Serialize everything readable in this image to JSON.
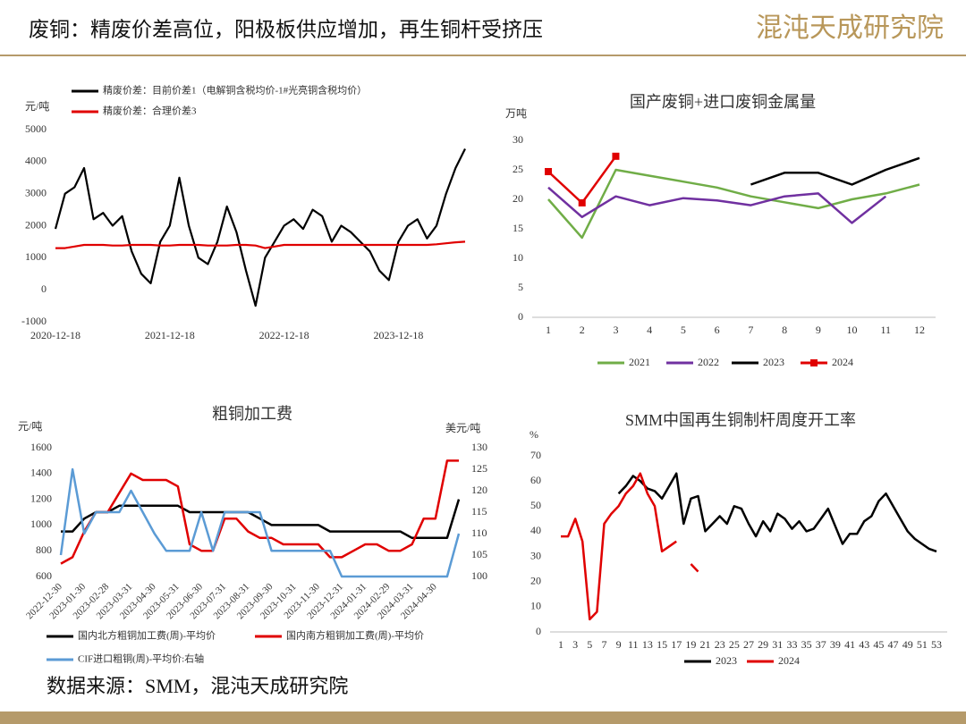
{
  "header": {
    "title": "废铜：精废价差高位，阳极板供应增加，再生铜杆受挤压",
    "logo": "混沌天成研究院"
  },
  "source": "数据来源：SMM，混沌天成研究院",
  "chart_data": [
    {
      "type": "line",
      "y_label": "元/吨",
      "categories": [
        "2020-12-18",
        null,
        null,
        null,
        null,
        null,
        null,
        null,
        null,
        null,
        null,
        null,
        "2021-12-18",
        null,
        null,
        null,
        null,
        null,
        null,
        null,
        null,
        null,
        null,
        null,
        "2022-12-18",
        null,
        null,
        null,
        null,
        null,
        null,
        null,
        null,
        null,
        null,
        null,
        "2023-12-18",
        null,
        null,
        null,
        null,
        null,
        null,
        null
      ],
      "series": [
        {
          "name": "精废价差：目前价差1（电解铜含税均价-1#光亮铜含税均价）",
          "color": "#000000",
          "values": [
            1900,
            3000,
            3200,
            3800,
            2200,
            2400,
            2000,
            2300,
            1200,
            500,
            200,
            1500,
            2000,
            3500,
            2000,
            1000,
            800,
            1500,
            2600,
            1800,
            600,
            -500,
            1000,
            1500,
            2000,
            2200,
            1900,
            2500,
            2300,
            1500,
            2000,
            1800,
            1500,
            1200,
            600,
            300,
            1500,
            2000,
            2200,
            1600,
            2000,
            3000,
            3800,
            4400
          ]
        },
        {
          "name": "精废价差：合理价差3",
          "color": "#e00000",
          "values": [
            1300,
            1300,
            1350,
            1400,
            1400,
            1400,
            1380,
            1380,
            1400,
            1400,
            1400,
            1380,
            1380,
            1400,
            1400,
            1400,
            1380,
            1380,
            1380,
            1400,
            1400,
            1380,
            1300,
            1350,
            1400,
            1400,
            1400,
            1400,
            1400,
            1400,
            1400,
            1400,
            1400,
            1400,
            1400,
            1400,
            1400,
            1400,
            1400,
            1400,
            1420,
            1450,
            1480,
            1500
          ]
        }
      ],
      "ylim": [
        -1000,
        5000
      ],
      "yticks": [
        -1000,
        0,
        1000,
        2000,
        3000,
        4000,
        5000
      ],
      "grid": false
    },
    {
      "type": "line",
      "title": "国产废铜+进口废铜金属量",
      "y_label": "万吨",
      "categories": [
        1,
        2,
        3,
        4,
        5,
        6,
        7,
        8,
        9,
        10,
        11,
        12
      ],
      "series": [
        {
          "name": "2021",
          "color": "#70ad47",
          "values": [
            20,
            13.5,
            25,
            24,
            23,
            22,
            20.5,
            19.5,
            18.5,
            20,
            21,
            22.5
          ]
        },
        {
          "name": "2022",
          "color": "#7030a0",
          "values": [
            22,
            17,
            20.5,
            19,
            20.2,
            19.8,
            19,
            20.5,
            21,
            16,
            20.5,
            null
          ]
        },
        {
          "name": "2023",
          "color": "#000000",
          "values": [
            null,
            null,
            null,
            null,
            null,
            null,
            22.5,
            24.5,
            24.5,
            22.5,
            25,
            27
          ]
        },
        {
          "name": "2024",
          "color": "#e00000",
          "marker": "square",
          "values": [
            24.7,
            19.4,
            27.3,
            null,
            null,
            null,
            null,
            null,
            null,
            null,
            null,
            null
          ]
        }
      ],
      "ylim": [
        0,
        30
      ],
      "yticks": [
        0,
        5,
        10,
        15,
        20,
        25,
        30
      ],
      "grid": false
    },
    {
      "type": "line",
      "title": "粗铜加工费",
      "y_label": "元/吨",
      "y2_label": "美元/吨",
      "categories": [
        "2022-12-30",
        null,
        "2023-01-30",
        null,
        "2023-02-28",
        null,
        "2023-03-31",
        null,
        "2023-04-30",
        null,
        "2023-05-31",
        null,
        "2023-06-30",
        null,
        "2023-07-31",
        null,
        "2023-08-31",
        null,
        "2023-09-30",
        null,
        "2023-10-31",
        null,
        "2023-11-30",
        null,
        "2023-12-31",
        null,
        "2024-01-31",
        null,
        "2024-02-29",
        null,
        "2024-03-31",
        null,
        "2024-04-30",
        null,
        null
      ],
      "series": [
        {
          "name": "国内北方粗铜加工费(周)-平均价",
          "color": "#000000",
          "values": [
            950,
            950,
            1050,
            1100,
            1100,
            1150,
            1150,
            1150,
            1150,
            1150,
            1150,
            1100,
            1100,
            1100,
            1100,
            1100,
            1100,
            1050,
            1000,
            1000,
            1000,
            1000,
            1000,
            950,
            950,
            950,
            950,
            950,
            950,
            950,
            900,
            900,
            900,
            900,
            1200
          ]
        },
        {
          "name": "国内南方粗铜加工费(周)-平均价",
          "color": "#e00000",
          "values": [
            700,
            750,
            950,
            1100,
            1100,
            1250,
            1400,
            1350,
            1350,
            1350,
            1300,
            850,
            800,
            800,
            1050,
            1050,
            950,
            900,
            900,
            850,
            850,
            850,
            850,
            750,
            750,
            800,
            850,
            850,
            800,
            800,
            850,
            1050,
            1050,
            1500,
            1500
          ]
        },
        {
          "name": "CIF进口粗铜(周)-平均价:右轴",
          "color": "#5b9bd5",
          "axis": "y2",
          "values": [
            105,
            125,
            110,
            115,
            115,
            115,
            120,
            115,
            110,
            106,
            106,
            106,
            115,
            106,
            115,
            115,
            115,
            115,
            106,
            106,
            106,
            106,
            106,
            106,
            100,
            100,
            100,
            100,
            100,
            100,
            100,
            100,
            100,
            100,
            110
          ]
        }
      ],
      "ylim": [
        600,
        1600
      ],
      "yticks": [
        600,
        800,
        1000,
        1200,
        1400,
        1600
      ],
      "y2lim": [
        100,
        130
      ],
      "y2ticks": [
        100,
        105,
        110,
        115,
        120,
        125,
        130
      ],
      "grid": false
    },
    {
      "type": "line",
      "title": "SMM中国再生铜制杆周度开工率",
      "y_label": "%",
      "categories": [
        1,
        null,
        3,
        null,
        5,
        null,
        7,
        null,
        9,
        null,
        11,
        null,
        13,
        null,
        15,
        null,
        17,
        null,
        19,
        null,
        21,
        null,
        23,
        null,
        25,
        null,
        27,
        null,
        29,
        null,
        31,
        null,
        33,
        null,
        35,
        null,
        37,
        null,
        39,
        null,
        41,
        null,
        43,
        null,
        45,
        null,
        47,
        null,
        49,
        null,
        51,
        null,
        53
      ],
      "series": [
        {
          "name": "2023",
          "color": "#000000",
          "values": [
            null,
            null,
            null,
            null,
            null,
            null,
            null,
            null,
            55,
            58,
            62,
            60,
            57,
            56,
            53,
            58,
            63,
            43,
            53,
            54,
            40,
            43,
            46,
            43,
            50,
            49,
            43,
            38,
            44,
            40,
            47,
            45,
            41,
            44,
            40,
            41,
            45,
            49,
            42,
            35,
            39,
            39,
            44,
            46,
            52,
            55,
            50,
            45,
            40,
            37,
            35,
            33,
            32
          ]
        },
        {
          "name": "2024",
          "color": "#e00000",
          "values": [
            38,
            38,
            45,
            36,
            5,
            8,
            43,
            47,
            50,
            55,
            58,
            63,
            55,
            50,
            32,
            34,
            36,
            null,
            27,
            24,
            null,
            null,
            null,
            null,
            null,
            null,
            null,
            null,
            null,
            null,
            null,
            null,
            null,
            null,
            null,
            null,
            null,
            null,
            null,
            null,
            null,
            null,
            null,
            null,
            null,
            null,
            null,
            null,
            null,
            null,
            null,
            null,
            null
          ]
        }
      ],
      "ylim": [
        0,
        70
      ],
      "yticks": [
        0,
        10,
        20,
        30,
        40,
        50,
        60,
        70
      ],
      "grid": false
    }
  ]
}
